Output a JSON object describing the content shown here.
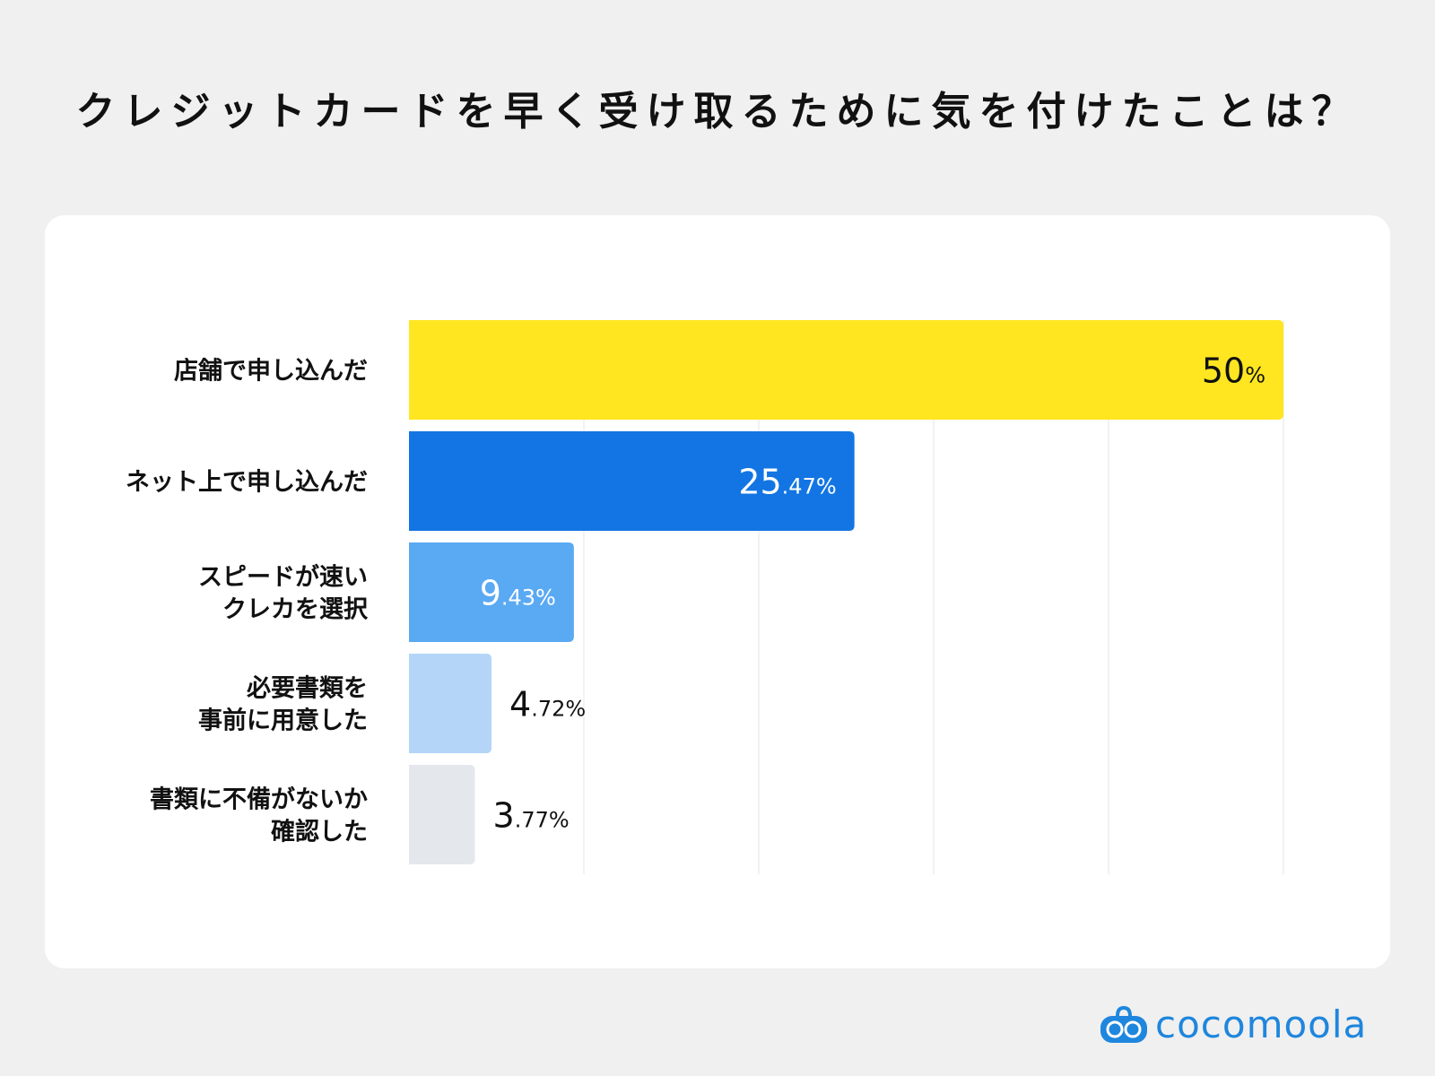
{
  "title": "クレジットカードを早く受け取るために気を付けたことは？",
  "logo_text": "cocomoola",
  "chart_data": {
    "type": "bar",
    "orientation": "horizontal",
    "title": "クレジットカードを早く受け取るために気を付けたことは？",
    "categories": [
      [
        "店舗で申し込んだ"
      ],
      [
        "ネット上で申し込んだ"
      ],
      [
        "スピードが速い",
        "クレカを選択"
      ],
      [
        "必要書類を",
        "事前に用意した"
      ],
      [
        "書類に不備がないか",
        "確認した"
      ]
    ],
    "values": [
      50,
      25.47,
      9.43,
      4.72,
      3.77
    ],
    "labels": [
      [
        "50",
        "%"
      ],
      [
        "25",
        ".47%"
      ],
      [
        "9",
        ".43%"
      ],
      [
        "4",
        ".72%"
      ],
      [
        "3",
        ".77%"
      ]
    ],
    "colors": [
      "#ffe620",
      "#1275e3",
      "#5aa9f3",
      "#b4d5f8",
      "#e4e8ed"
    ],
    "label_colors": [
      "#111111",
      "#ffffff",
      "#ffffff",
      "#111111",
      "#111111"
    ],
    "xlim": [
      0,
      50
    ],
    "grid": true,
    "unit": "%"
  }
}
